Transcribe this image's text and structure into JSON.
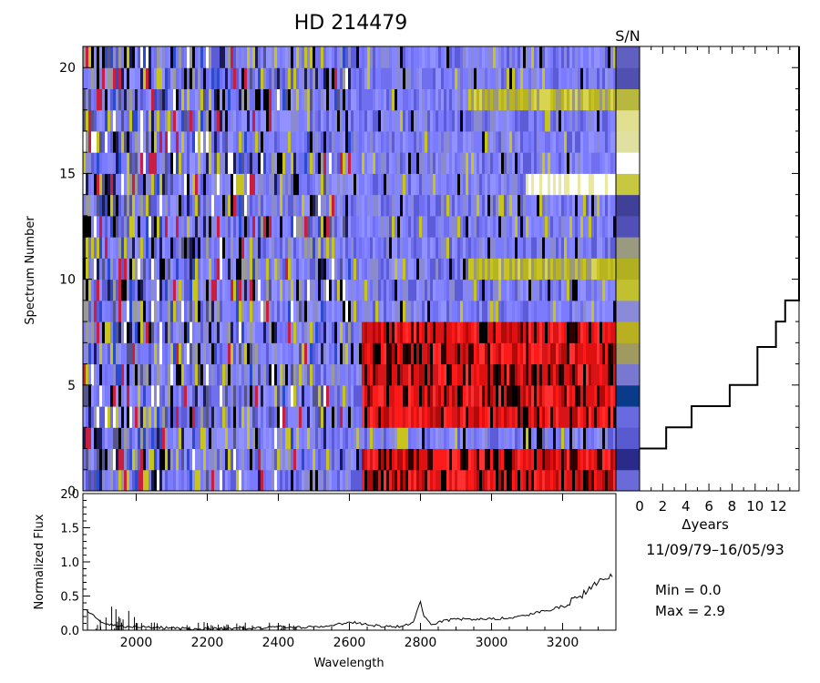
{
  "title": "HD  214479",
  "sn_label": "S/N",
  "date_range": "11/09/79–16/05/93",
  "min_text": "Min =  0.0",
  "max_text": "Max =  2.9",
  "chart_data": [
    {
      "type": "heatmap",
      "ylabel": "Spectrum Number",
      "ylim": [
        0,
        21
      ],
      "yticks": [
        0,
        5,
        10,
        15,
        20
      ],
      "xlim": [
        1850,
        3350
      ],
      "color_min": 0.0,
      "color_max": 2.9,
      "colors": {
        "low": "#000000",
        "mid_blue": "#7b7bff",
        "yellow": "#c8c41e",
        "red": "#ff1a1a",
        "white": "#ffffff"
      },
      "spectra": [
        {
          "n": 1,
          "state": "red"
        },
        {
          "n": 2,
          "state": "red"
        },
        {
          "n": 3,
          "state": "blue"
        },
        {
          "n": 4,
          "state": "red"
        },
        {
          "n": 5,
          "state": "red"
        },
        {
          "n": 6,
          "state": "red"
        },
        {
          "n": 7,
          "state": "red"
        },
        {
          "n": 8,
          "state": "red"
        },
        {
          "n": 9,
          "state": "blue"
        },
        {
          "n": 10,
          "state": "blue"
        },
        {
          "n": 11,
          "state": "yellow"
        },
        {
          "n": 12,
          "state": "blue"
        },
        {
          "n": 13,
          "state": "blue"
        },
        {
          "n": 14,
          "state": "blue"
        },
        {
          "n": 15,
          "state": "white"
        },
        {
          "n": 16,
          "state": "blue"
        },
        {
          "n": 17,
          "state": "blue"
        },
        {
          "n": 18,
          "state": "blue"
        },
        {
          "n": 19,
          "state": "yellow"
        },
        {
          "n": 20,
          "state": "blue"
        },
        {
          "n": 21,
          "state": "blue"
        }
      ],
      "sn_colors": [
        "#6a6ad8",
        "#2a2a8a",
        "#5a5ad0",
        "#6a6ae0",
        "#0a3a8a",
        "#7878d0",
        "#a09a60",
        "#b8b020",
        "#8a8ad8",
        "#c0c030",
        "#b0b020",
        "#9a9a80",
        "#5050b8",
        "#404098",
        "#c8c840",
        "#ffffff",
        "#e0e0a0",
        "#e0e090",
        "#b8b840",
        "#5050b0",
        "#6060c0"
      ]
    },
    {
      "type": "line",
      "xlabel": "Wavelength",
      "ylabel": "Normalized Flux",
      "xlim": [
        1850,
        3350
      ],
      "ylim": [
        0.0,
        2.0
      ],
      "xticks": [
        2000,
        2200,
        2400,
        2600,
        2800,
        3000,
        3200
      ],
      "yticks": [
        0.0,
        0.5,
        1.0,
        1.5,
        2.0
      ],
      "ytick_labels": [
        "0.0",
        "0.5",
        "1.0",
        "1.5",
        "2.0"
      ],
      "x": [
        1860,
        1900,
        1950,
        2000,
        2050,
        2100,
        2150,
        2200,
        2250,
        2300,
        2350,
        2400,
        2450,
        2500,
        2550,
        2600,
        2650,
        2700,
        2750,
        2780,
        2790,
        2800,
        2810,
        2830,
        2850,
        2900,
        2950,
        3000,
        3050,
        3100,
        3150,
        3200,
        3250,
        3280,
        3300,
        3320,
        3340
      ],
      "y": [
        0.3,
        0.12,
        0.06,
        0.05,
        0.04,
        0.03,
        0.02,
        0.02,
        0.02,
        0.03,
        0.03,
        0.05,
        0.04,
        0.05,
        0.07,
        0.12,
        0.08,
        0.05,
        0.06,
        0.12,
        0.28,
        0.42,
        0.2,
        0.08,
        0.12,
        0.16,
        0.16,
        0.16,
        0.18,
        0.22,
        0.28,
        0.35,
        0.5,
        0.6,
        0.7,
        0.75,
        0.78
      ]
    },
    {
      "type": "line",
      "xlabel": "Δyears",
      "xlim": [
        0,
        13.8
      ],
      "xticks": [
        0,
        2,
        4,
        6,
        8,
        10,
        12
      ],
      "ylim": [
        0,
        21
      ],
      "steps_x": [
        0,
        2.3,
        4.5,
        7.8,
        10.2,
        11.8,
        12.6,
        13.8
      ],
      "steps_y": [
        2,
        3,
        4,
        5,
        6.8,
        8,
        9,
        21
      ]
    }
  ]
}
